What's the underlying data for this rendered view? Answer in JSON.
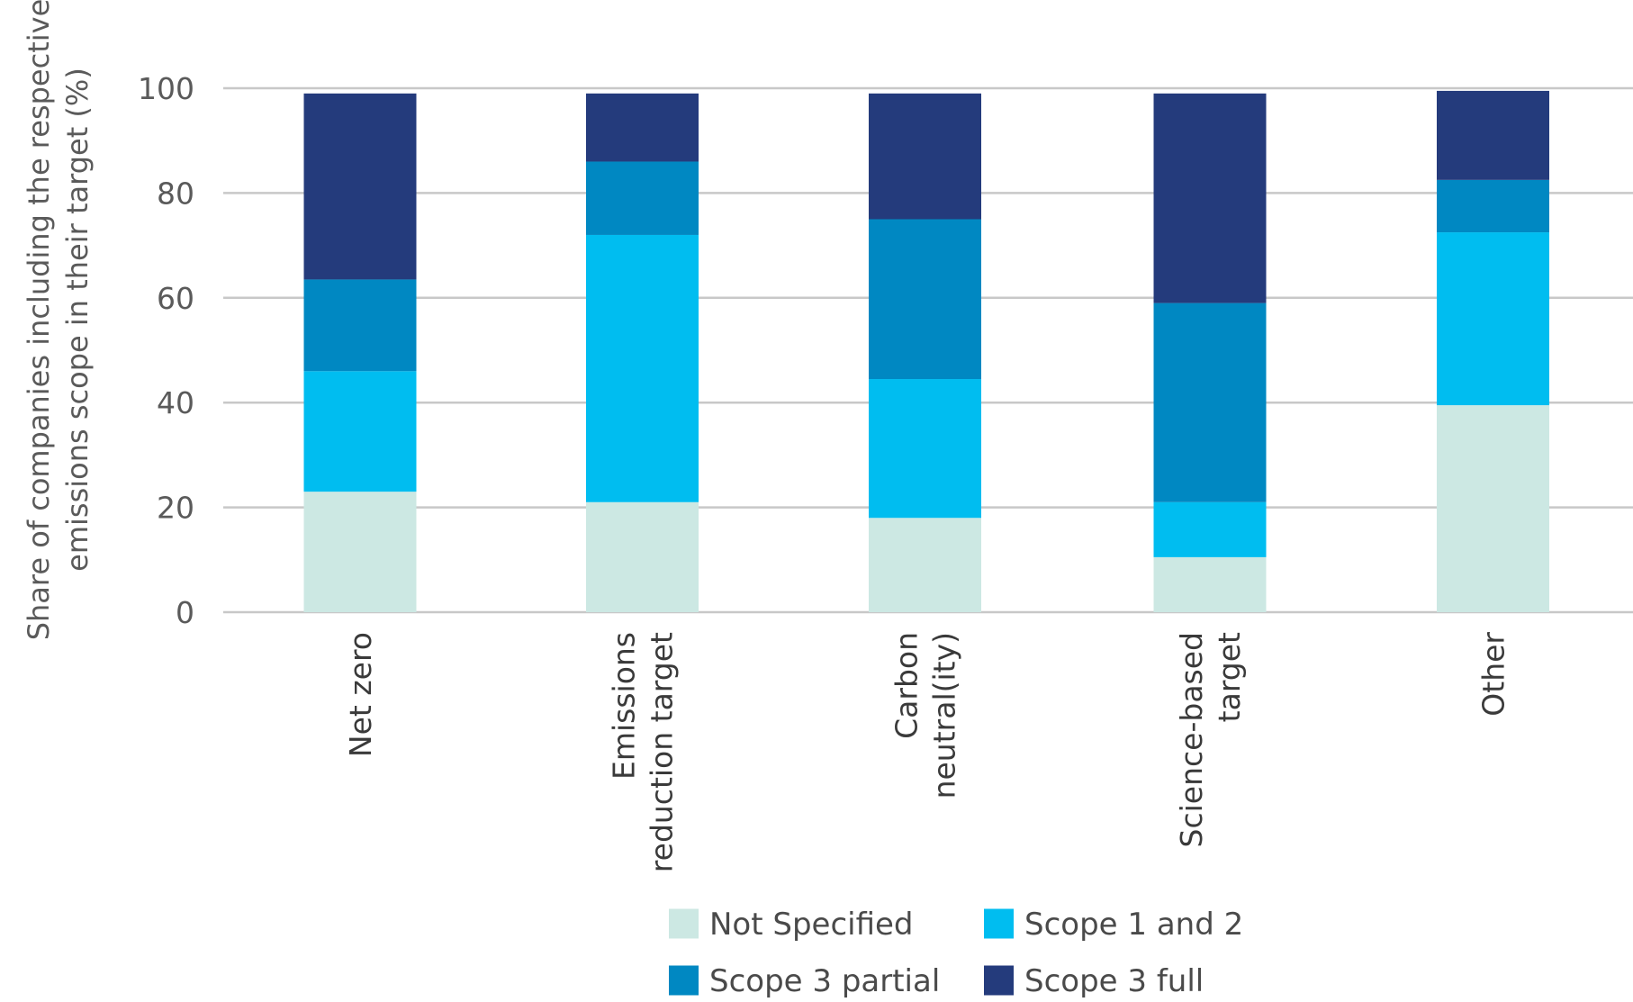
{
  "chart_data": {
    "type": "bar",
    "stacked": true,
    "categories": [
      [
        "Net zero"
      ],
      [
        "Emissions",
        "reduction target"
      ],
      [
        "Carbon",
        "neutral(ity)"
      ],
      [
        "Science-based",
        "target"
      ],
      [
        "Other"
      ]
    ],
    "series": [
      {
        "name": "Not Specified",
        "color": "#cce8e3",
        "values": [
          23,
          21,
          18,
          10.5,
          39.5
        ]
      },
      {
        "name": "Scope 1 and 2",
        "color": "#00bdf0",
        "values": [
          23,
          51,
          26.5,
          10.5,
          33
        ]
      },
      {
        "name": "Scope 3 partial",
        "color": "#0088c2",
        "values": [
          17.5,
          14,
          30.5,
          38,
          10
        ]
      },
      {
        "name": "Scope 3 full",
        "color": "#243b7c",
        "values": [
          35.5,
          13,
          24,
          40,
          17
        ]
      }
    ],
    "ylabel": [
      "Share of companies including the respective",
      "emissions scope in their target (%)"
    ],
    "yticks": [
      0,
      20,
      40,
      60,
      80,
      100
    ],
    "ylim": [
      0,
      100
    ],
    "grid": true,
    "legend_placement": "bottom"
  }
}
